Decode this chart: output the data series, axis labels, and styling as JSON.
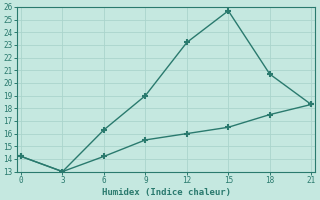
{
  "xlabel": "Humidex (Indice chaleur)",
  "line1_x": [
    0,
    3,
    6,
    9,
    12,
    15,
    18,
    21
  ],
  "line1_y": [
    14.2,
    13.0,
    16.3,
    19.0,
    23.2,
    25.7,
    20.7,
    18.3
  ],
  "line2_x": [
    0,
    3,
    6,
    9,
    12,
    15,
    18,
    21
  ],
  "line2_y": [
    14.2,
    13.0,
    14.2,
    15.5,
    16.0,
    16.5,
    17.5,
    18.3
  ],
  "line_color": "#2a7a6e",
  "bg_color": "#c5e8e0",
  "grid_color": "#aad4cc",
  "spine_color": "#2a7a6e",
  "xlim": [
    -0.3,
    21.3
  ],
  "ylim": [
    13,
    26
  ],
  "xticks": [
    0,
    3,
    6,
    9,
    12,
    15,
    18,
    21
  ],
  "yticks": [
    13,
    14,
    15,
    16,
    17,
    18,
    19,
    20,
    21,
    22,
    23,
    24,
    25,
    26
  ],
  "tick_fontsize": 5.5,
  "xlabel_fontsize": 6.5,
  "marker": "+",
  "markersize": 5,
  "markeredgewidth": 1.5,
  "linewidth": 1.0
}
